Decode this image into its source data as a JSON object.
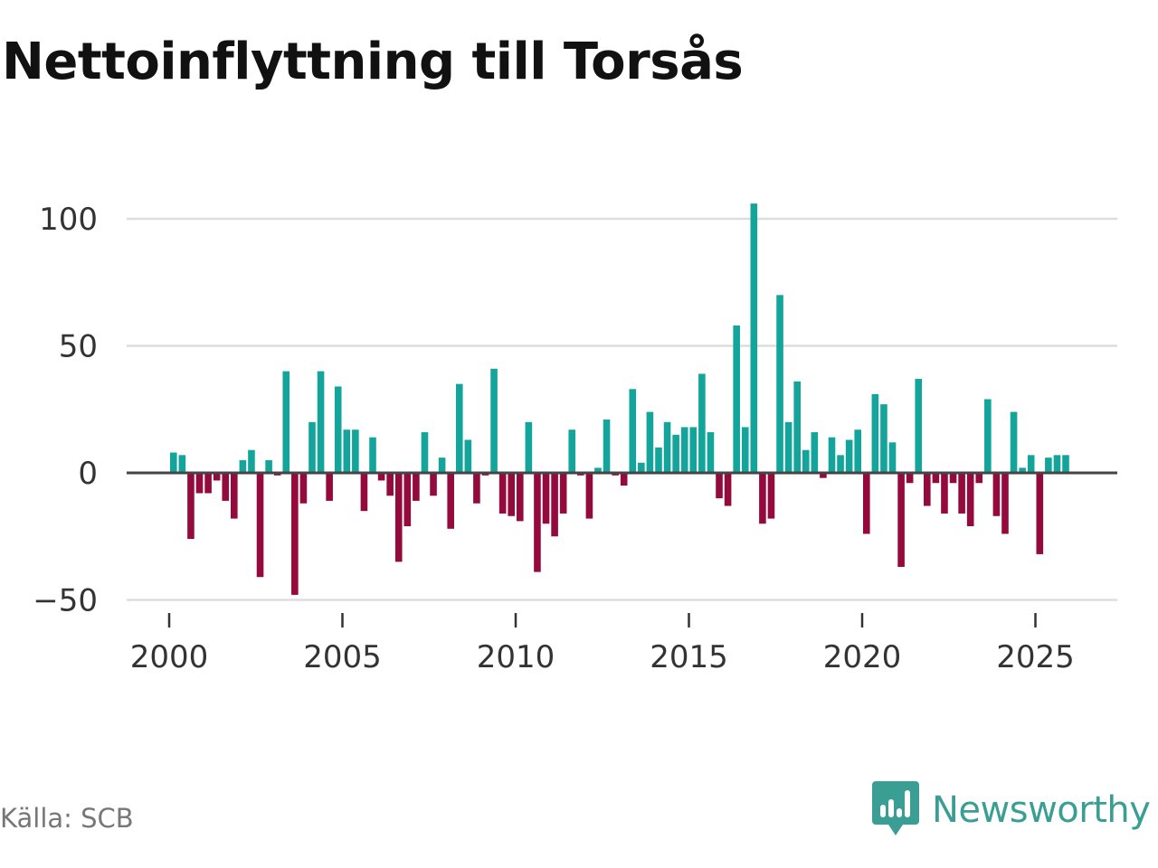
{
  "chart_data": {
    "type": "bar",
    "title": "Nettoinflyttning till Torsås",
    "source": "Källa: SCB",
    "xlabel": "",
    "ylabel": "",
    "x_ticks": [
      2000,
      2005,
      2010,
      2015,
      2020,
      2025
    ],
    "x_tick_labels": [
      "2000",
      "2005",
      "2010",
      "2015",
      "2020",
      "2025"
    ],
    "y_ticks": [
      -50,
      0,
      50,
      100
    ],
    "y_tick_labels": [
      "−50",
      "0",
      "50",
      "100"
    ],
    "xlim": [
      1998.7,
      2027.2
    ],
    "ylim": [
      -55,
      110
    ],
    "positive_color": "#13a59b",
    "negative_color": "#940a3c",
    "period": "quarterly",
    "x": [
      2000.25,
      2000.5,
      2000.75,
      2001.0,
      2001.25,
      2001.5,
      2001.75,
      2002.0,
      2002.25,
      2002.5,
      2002.75,
      2003.0,
      2003.25,
      2003.5,
      2003.75,
      2004.0,
      2004.25,
      2004.5,
      2004.75,
      2005.0,
      2005.25,
      2005.5,
      2005.75,
      2006.0,
      2006.25,
      2006.5,
      2006.75,
      2007.0,
      2007.25,
      2007.5,
      2007.75,
      2008.0,
      2008.25,
      2008.5,
      2008.75,
      2009.0,
      2009.25,
      2009.5,
      2009.75,
      2010.0,
      2010.25,
      2010.5,
      2010.75,
      2011.0,
      2011.25,
      2011.5,
      2011.75,
      2012.0,
      2012.25,
      2012.5,
      2012.75,
      2013.0,
      2013.25,
      2013.5,
      2013.75,
      2014.0,
      2014.25,
      2014.5,
      2014.75,
      2015.0,
      2015.25,
      2015.5,
      2015.75,
      2016.0,
      2016.25,
      2016.5,
      2016.75,
      2017.0,
      2017.25,
      2017.5,
      2017.75,
      2018.0,
      2018.25,
      2018.5,
      2018.75,
      2019.0,
      2019.25,
      2019.5,
      2019.75,
      2020.0,
      2020.25,
      2020.5,
      2020.75,
      2021.0,
      2021.25,
      2021.5,
      2021.75,
      2022.0,
      2022.25,
      2022.5,
      2022.75,
      2023.0,
      2023.25,
      2023.5,
      2023.75,
      2024.0,
      2024.25,
      2024.5,
      2024.75,
      2025.0,
      2025.25,
      2025.5,
      2025.75,
      2026.0
    ],
    "values": [
      8,
      7,
      -26,
      -8,
      -8,
      -3,
      -11,
      -18,
      5,
      9,
      -41,
      5,
      -1,
      40,
      -48,
      -12,
      20,
      40,
      -11,
      34,
      17,
      17,
      -15,
      14,
      -3,
      -9,
      -35,
      -21,
      -11,
      16,
      -9,
      6,
      -22,
      35,
      13,
      -12,
      -1,
      41,
      -16,
      -17,
      -19,
      20,
      -39,
      -20,
      -25,
      -16,
      17,
      -1,
      -18,
      2,
      21,
      -1,
      -5,
      33,
      4,
      24,
      10,
      20,
      15,
      18,
      18,
      39,
      16,
      -10,
      -13,
      58,
      18,
      106,
      -20,
      -18,
      70,
      20,
      36,
      9,
      16,
      -2,
      14,
      7,
      13,
      17,
      -24,
      31,
      27,
      12,
      -37,
      -4,
      37,
      -13,
      -4,
      -16,
      -4,
      -16,
      -21,
      -4,
      29,
      -17,
      -24,
      24,
      2,
      7,
      -32,
      6,
      7,
      7
    ]
  }
}
